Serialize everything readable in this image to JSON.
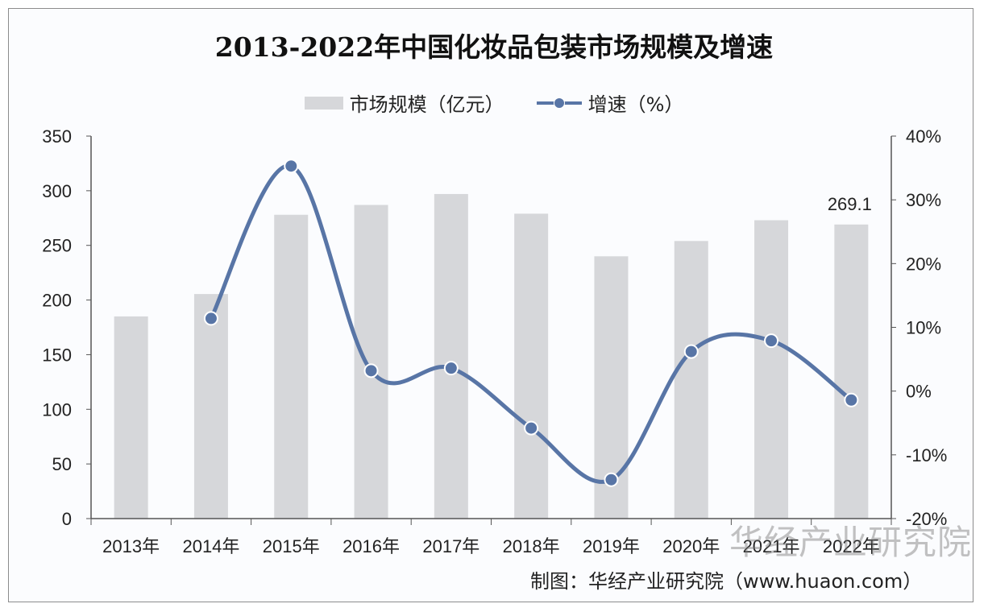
{
  "chart_data": {
    "type": "bar+line",
    "title": "2013-2022年中国化妆品包装市场规模及增速",
    "categories": [
      "2013年",
      "2014年",
      "2015年",
      "2016年",
      "2017年",
      "2018年",
      "2019年",
      "2020年",
      "2021年",
      "2022年"
    ],
    "series": [
      {
        "name": "市场规模（亿元）",
        "type": "bar",
        "axis": "left",
        "color": "#d6d7da",
        "values": [
          185,
          205.5,
          278,
          287,
          297,
          279,
          240,
          254,
          273,
          269.1
        ]
      },
      {
        "name": "增速（%）",
        "type": "line",
        "axis": "right",
        "color": "#5875a6",
        "values": [
          null,
          11.4,
          35.3,
          3.2,
          3.6,
          -5.8,
          -13.9,
          6.2,
          7.9,
          -1.4
        ]
      }
    ],
    "data_labels": [
      {
        "category": "2022年",
        "series": "市场规模（亿元）",
        "text": "269.1"
      }
    ],
    "left_axis": {
      "range": [
        0,
        350
      ],
      "ticks": [
        "0",
        "50",
        "100",
        "150",
        "200",
        "250",
        "300",
        "350"
      ]
    },
    "right_axis": {
      "range": [
        -20,
        40
      ],
      "ticks": [
        "-20%",
        "-10%",
        "0%",
        "10%",
        "20%",
        "30%",
        "40%"
      ]
    },
    "legend_position": "top",
    "grid": false
  },
  "source": "制图：华经产业研究院（www.huaon.com）",
  "watermark": "华经产业研究院"
}
